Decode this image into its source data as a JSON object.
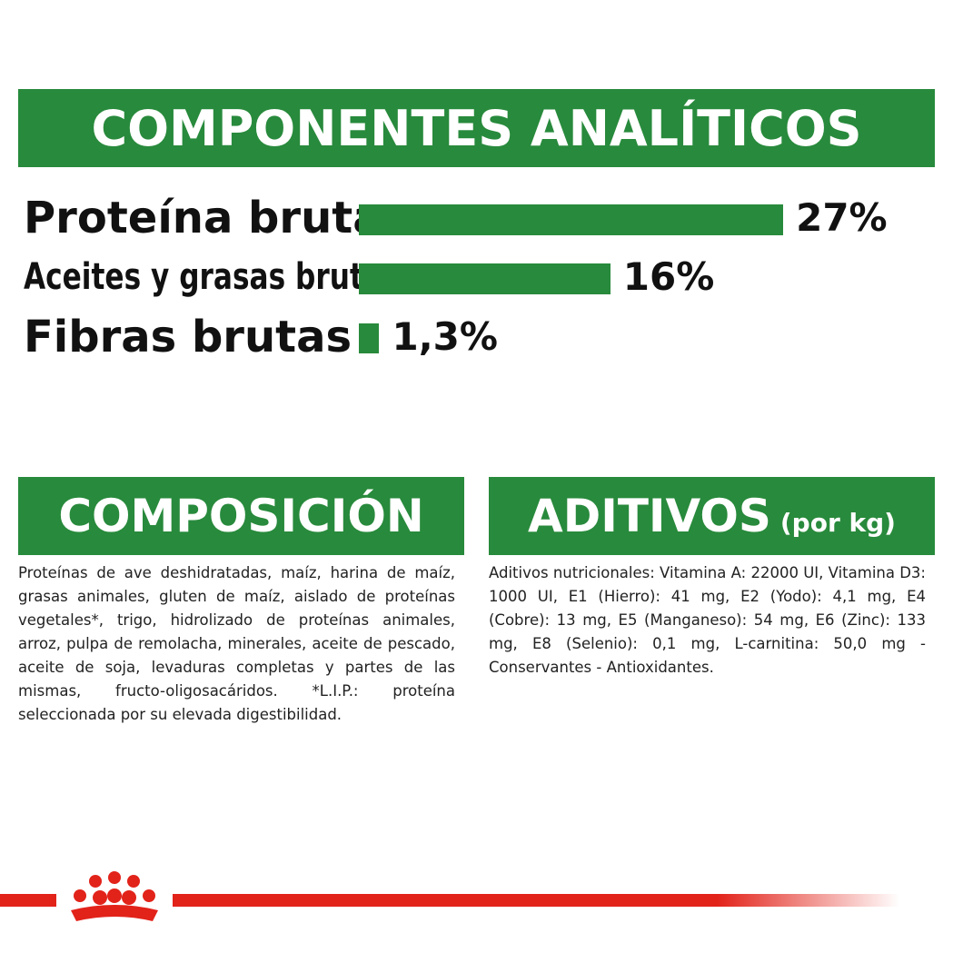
{
  "chart_data": {
    "type": "bar",
    "title": "COMPONENTES ANALÍTICOS",
    "categories": [
      "Proteína bruta",
      "Aceites y grasas brutos",
      "Fibras brutas"
    ],
    "values": [
      27,
      16,
      1.3
    ],
    "value_labels": [
      "27%",
      "16%",
      "1,3%"
    ],
    "color": "#288a3c"
  },
  "composicion": {
    "title": "COMPOSICIÓN",
    "text": "Proteínas de ave deshidratadas, maíz, harina de maíz, grasas animales, gluten de maíz, aislado de proteínas vegetales*, trigo, hidrolizado de proteínas animales, arroz, pulpa de remolacha, minerales, aceite de pescado, aceite de soja, levaduras completas y partes de las mismas, fructo-oligosacáridos. *L.I.P.: proteína seleccionada por su elevada digestibilidad."
  },
  "aditivos": {
    "title": "ADITIVOS",
    "subtitle": "(por kg)",
    "text": "Aditivos nutricionales: Vitamina A: 22000 UI, Vitamina D3: 1000 UI, E1 (Hierro): 41 mg, E2 (Yodo): 4,1 mg, E4 (Cobre): 13 mg, E5 (Manganeso): 54 mg, E6 (Zinc): 133 mg, E8 (Selenio): 0,1 mg, L-carnitina: 50,0 mg - Conservantes - Antioxidantes."
  }
}
